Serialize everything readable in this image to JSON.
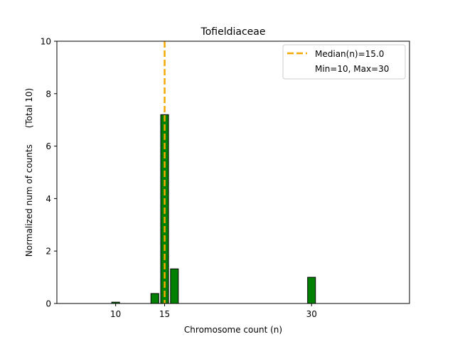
{
  "chart_data": {
    "type": "bar",
    "title": "Tofieldiaceae",
    "xlabel": "Chromosome count (n)",
    "ylabel": "Normalized num of counts      (Total 10)",
    "xlim": [
      4,
      40
    ],
    "ylim": [
      0,
      10
    ],
    "x_ticks": [
      10,
      15,
      30
    ],
    "y_ticks": [
      0,
      2,
      4,
      6,
      8,
      10
    ],
    "bars": [
      {
        "x": 10,
        "value": 0.05
      },
      {
        "x": 14,
        "value": 0.38
      },
      {
        "x": 15,
        "value": 7.2
      },
      {
        "x": 16,
        "value": 1.32
      },
      {
        "x": 30,
        "value": 1.0
      }
    ],
    "bar_color": "#008000",
    "bar_edge_color": "#000000",
    "median": {
      "value": 15.0,
      "color": "#f5a800"
    },
    "legend": {
      "position": "top-right",
      "entries": [
        "Median(n)=15.0",
        "Min=10, Max=30"
      ]
    }
  }
}
